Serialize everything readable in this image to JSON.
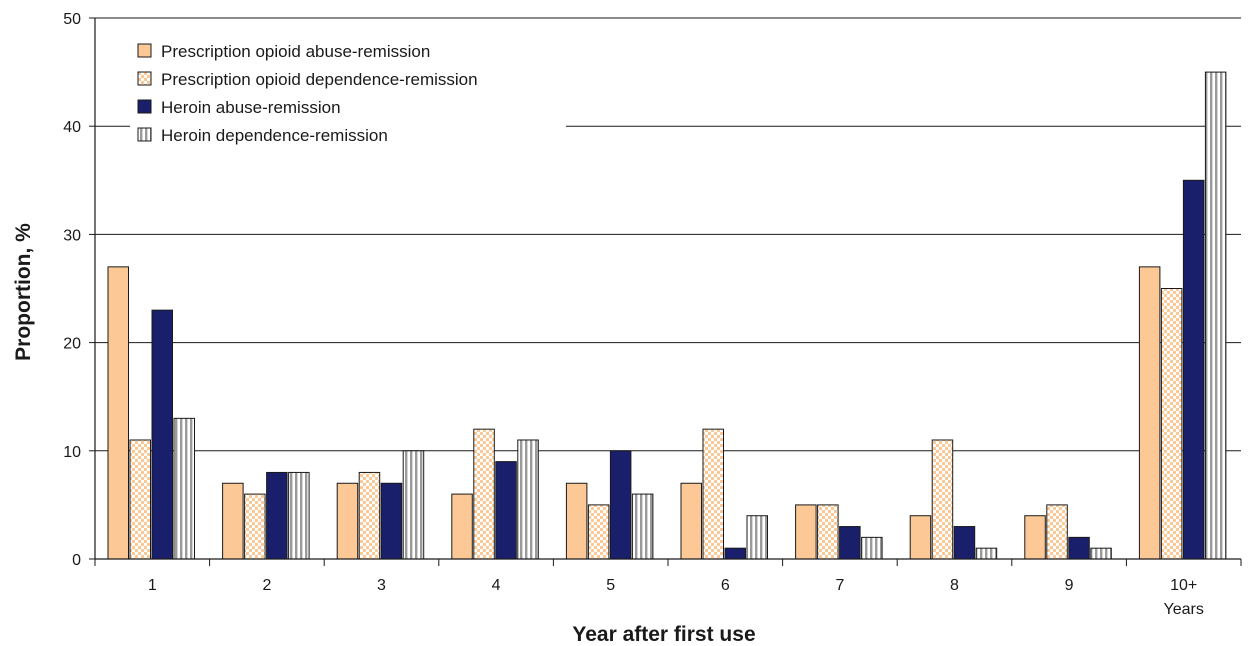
{
  "chart_data": {
    "type": "bar",
    "title": "",
    "xlabel": "Year after first use",
    "ylabel": "Proportion, %",
    "ylim": [
      0,
      50
    ],
    "yticks": [
      "0",
      "10",
      "20",
      "30",
      "40",
      "50"
    ],
    "categories": [
      "1",
      "2",
      "3",
      "4",
      "5",
      "6",
      "7",
      "8",
      "9",
      "10+\nYears"
    ],
    "grid": "horizontal",
    "legend_position": "top-left",
    "series": [
      {
        "name": "Prescription opioid abuse-remission",
        "fill": "#fcc896",
        "pattern": "solid",
        "values": [
          27,
          7,
          7,
          6,
          7,
          7,
          5,
          4,
          4,
          27
        ]
      },
      {
        "name": "Prescription opioid dependence-remission",
        "fill": "#fcc896",
        "pattern": "checker",
        "values": [
          11,
          6,
          8,
          12,
          5,
          12,
          5,
          11,
          5,
          25
        ]
      },
      {
        "name": "Heroin abuse-remission",
        "fill": "#1a1f6b",
        "pattern": "solid",
        "values": [
          23,
          8,
          7,
          9,
          10,
          1,
          3,
          3,
          2,
          35
        ]
      },
      {
        "name": "Heroin dependence-remission",
        "fill": "#9a9a9a",
        "pattern": "vertical-stripes",
        "values": [
          13,
          8,
          10,
          11,
          6,
          4,
          2,
          1,
          1,
          45
        ]
      }
    ]
  }
}
